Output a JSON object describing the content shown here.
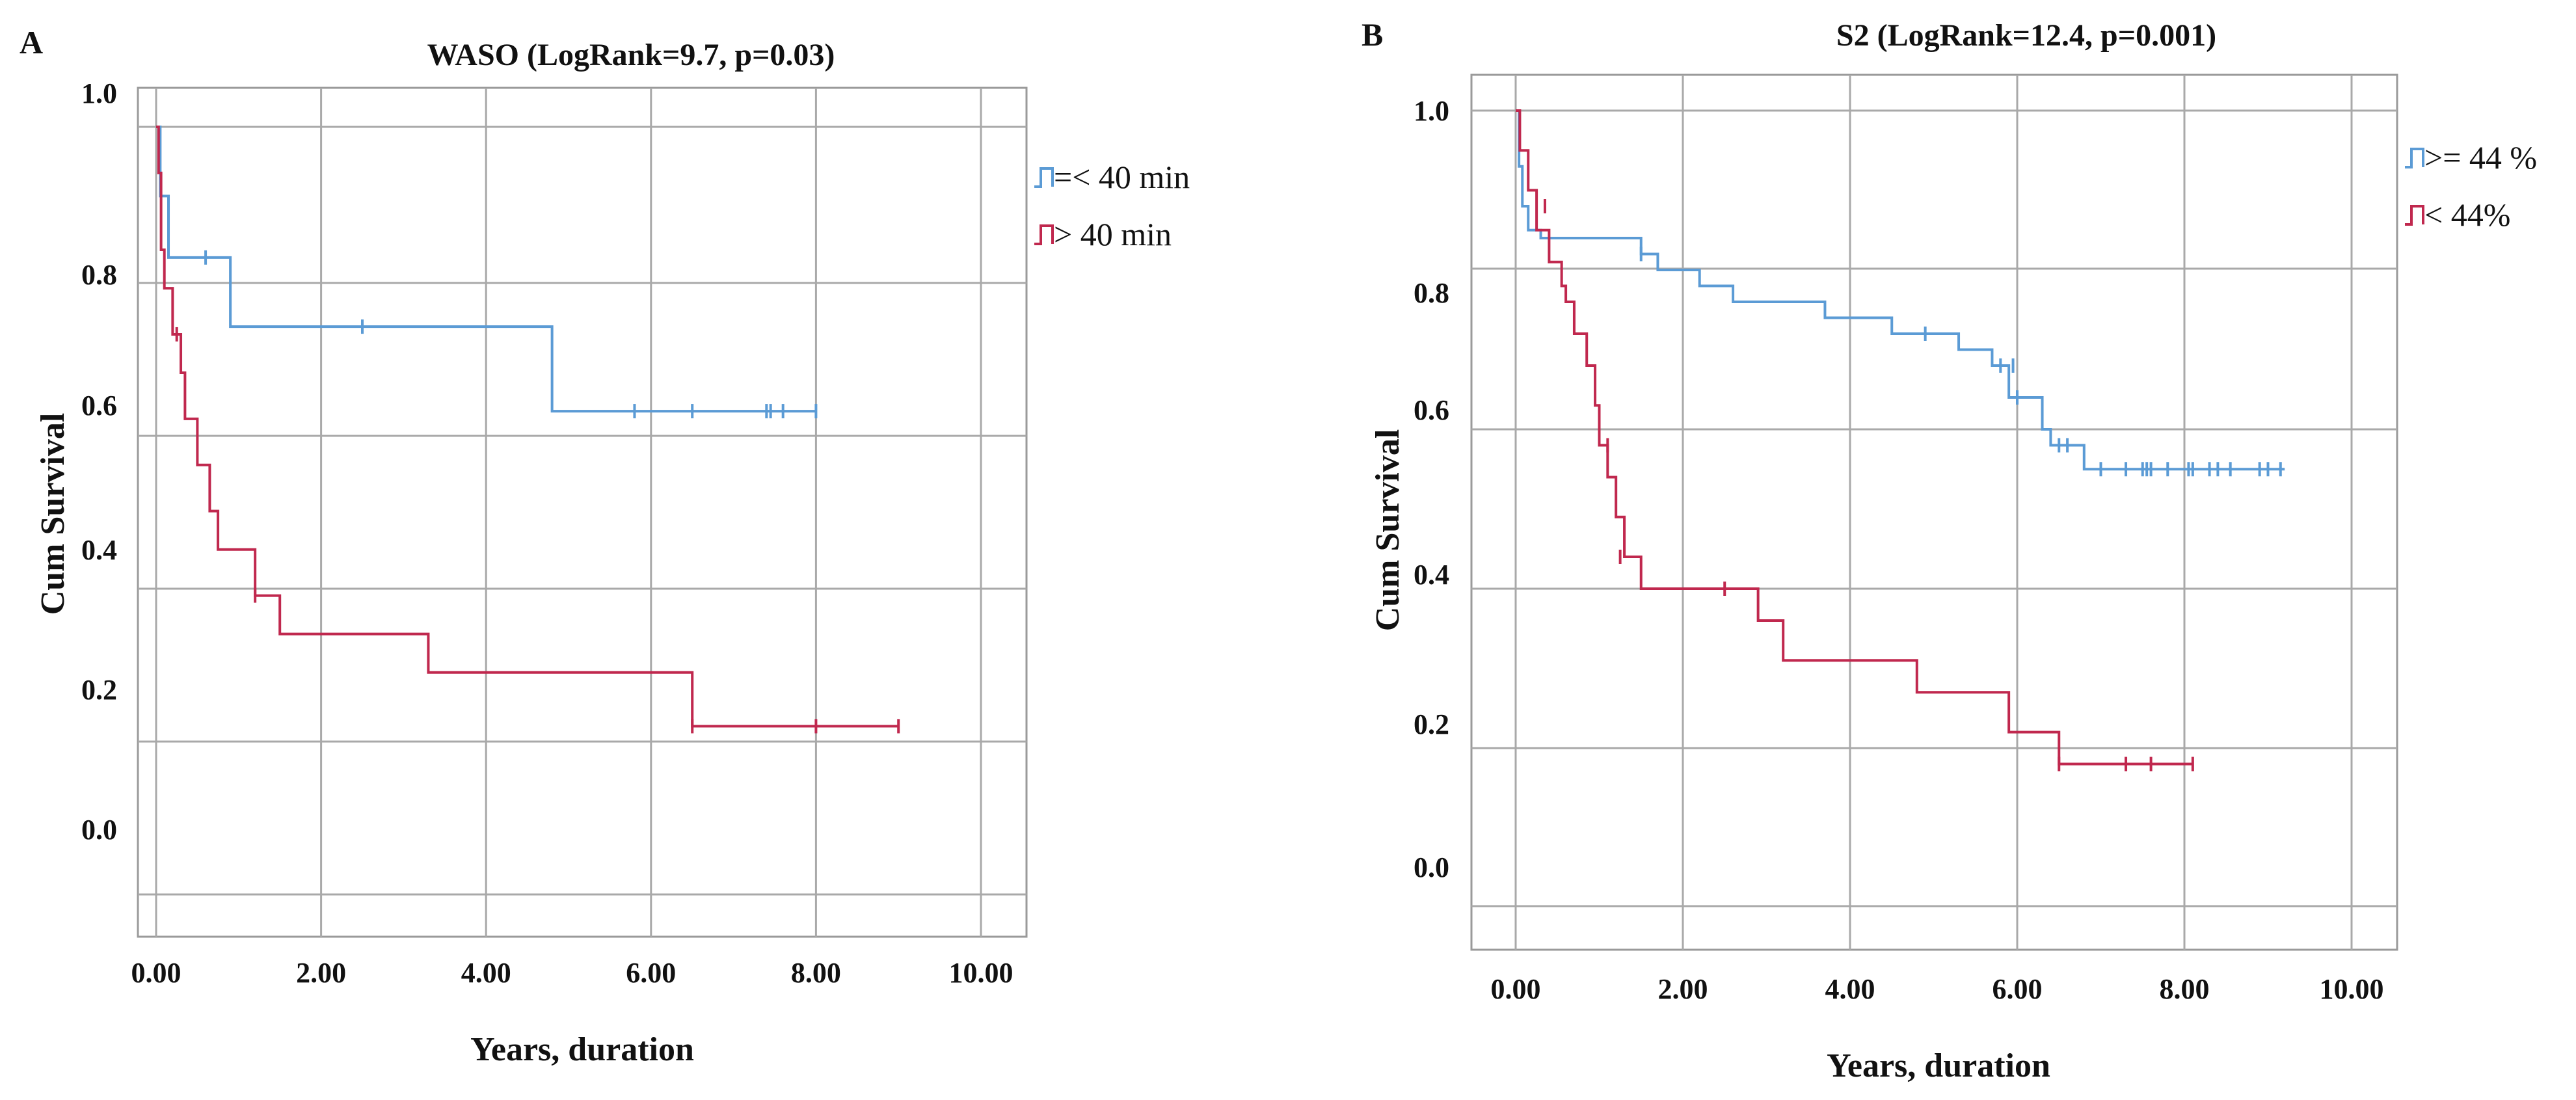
{
  "chart_data": [
    {
      "panel": "A",
      "type": "line",
      "title": "WASO (LogRank=9.7, p=0.03)",
      "xlabel": "Years, duration",
      "ylabel": "Cum Survival",
      "xlim": [
        0,
        10
      ],
      "x_ticks": [
        "0.00",
        "2.00",
        "4.00",
        "6.00",
        "8.00",
        "10.00"
      ],
      "y_ticks": [
        "0.0",
        "0.2",
        "0.4",
        "0.6",
        "0.8",
        "1.0"
      ],
      "grid": true,
      "legend_position": "top-right",
      "series": [
        {
          "name": "=< 40 min",
          "color": "#5b9bd5",
          "steps": [
            [
              0.0,
              1.0
            ],
            [
              0.05,
              0.91
            ],
            [
              0.15,
              0.83
            ],
            [
              0.9,
              0.74
            ],
            [
              4.8,
              0.63
            ],
            [
              8.0,
              0.63
            ]
          ],
          "censored": [
            [
              0.6,
              0.83
            ],
            [
              2.5,
              0.74
            ],
            [
              5.8,
              0.63
            ],
            [
              6.5,
              0.63
            ],
            [
              7.4,
              0.63
            ],
            [
              7.45,
              0.63
            ],
            [
              7.6,
              0.63
            ],
            [
              8.0,
              0.63
            ]
          ]
        },
        {
          "name": "> 40 min",
          "color": "#c0284e",
          "steps": [
            [
              0.0,
              1.0
            ],
            [
              0.03,
              0.94
            ],
            [
              0.06,
              0.84
            ],
            [
              0.1,
              0.79
            ],
            [
              0.2,
              0.73
            ],
            [
              0.3,
              0.68
            ],
            [
              0.35,
              0.62
            ],
            [
              0.5,
              0.56
            ],
            [
              0.65,
              0.5
            ],
            [
              0.75,
              0.45
            ],
            [
              1.2,
              0.39
            ],
            [
              1.5,
              0.34
            ],
            [
              3.3,
              0.29
            ],
            [
              6.5,
              0.22
            ],
            [
              9.0,
              0.22
            ]
          ],
          "censored": [
            [
              0.25,
              0.73
            ],
            [
              1.2,
              0.39
            ],
            [
              6.5,
              0.22
            ],
            [
              8.0,
              0.22
            ],
            [
              9.0,
              0.22
            ]
          ]
        }
      ]
    },
    {
      "panel": "B",
      "type": "line",
      "title": "S2 (LogRank=12.4, p=0.001)",
      "xlabel": "Years, duration",
      "ylabel": "Cum Survival",
      "xlim": [
        0,
        10
      ],
      "x_ticks": [
        "0.00",
        "2.00",
        "4.00",
        "6.00",
        "8.00",
        "10.00"
      ],
      "y_ticks": [
        "0.0",
        "0.2",
        "0.4",
        "0.6",
        "0.8",
        "1.0"
      ],
      "grid": true,
      "legend_position": "top-right",
      "series": [
        {
          "name": ">= 44 %",
          "color": "#5b9bd5",
          "steps": [
            [
              0.0,
              1.0
            ],
            [
              0.04,
              0.93
            ],
            [
              0.08,
              0.88
            ],
            [
              0.15,
              0.85
            ],
            [
              0.3,
              0.84
            ],
            [
              1.5,
              0.82
            ],
            [
              1.7,
              0.8
            ],
            [
              2.2,
              0.78
            ],
            [
              2.6,
              0.76
            ],
            [
              3.7,
              0.74
            ],
            [
              4.5,
              0.72
            ],
            [
              5.3,
              0.7
            ],
            [
              5.7,
              0.68
            ],
            [
              5.9,
              0.64
            ],
            [
              6.3,
              0.6
            ],
            [
              6.4,
              0.58
            ],
            [
              6.8,
              0.55
            ],
            [
              9.2,
              0.55
            ]
          ],
          "censored": [
            [
              1.5,
              0.82
            ],
            [
              4.9,
              0.72
            ],
            [
              5.8,
              0.68
            ],
            [
              5.95,
              0.68
            ],
            [
              6.0,
              0.64
            ],
            [
              6.5,
              0.58
            ],
            [
              6.6,
              0.58
            ],
            [
              7.0,
              0.55
            ],
            [
              7.3,
              0.55
            ],
            [
              7.5,
              0.55
            ],
            [
              7.55,
              0.55
            ],
            [
              7.6,
              0.55
            ],
            [
              7.8,
              0.55
            ],
            [
              8.05,
              0.55
            ],
            [
              8.1,
              0.55
            ],
            [
              8.3,
              0.55
            ],
            [
              8.4,
              0.55
            ],
            [
              8.55,
              0.55
            ],
            [
              8.9,
              0.55
            ],
            [
              9.0,
              0.55
            ],
            [
              9.15,
              0.55
            ]
          ]
        },
        {
          "name": "< 44%",
          "color": "#c0284e",
          "steps": [
            [
              0.0,
              1.0
            ],
            [
              0.05,
              0.95
            ],
            [
              0.15,
              0.9
            ],
            [
              0.25,
              0.85
            ],
            [
              0.4,
              0.81
            ],
            [
              0.55,
              0.78
            ],
            [
              0.6,
              0.76
            ],
            [
              0.7,
              0.72
            ],
            [
              0.85,
              0.68
            ],
            [
              0.95,
              0.63
            ],
            [
              1.0,
              0.58
            ],
            [
              1.1,
              0.54
            ],
            [
              1.2,
              0.49
            ],
            [
              1.3,
              0.44
            ],
            [
              1.5,
              0.4
            ],
            [
              2.9,
              0.36
            ],
            [
              3.2,
              0.31
            ],
            [
              4.8,
              0.27
            ],
            [
              5.9,
              0.22
            ],
            [
              6.5,
              0.18
            ],
            [
              8.1,
              0.18
            ]
          ],
          "censored": [
            [
              0.35,
              0.88
            ],
            [
              1.1,
              0.58
            ],
            [
              1.25,
              0.44
            ],
            [
              2.5,
              0.4
            ],
            [
              6.5,
              0.18
            ],
            [
              7.3,
              0.18
            ],
            [
              7.6,
              0.18
            ],
            [
              8.1,
              0.18
            ]
          ]
        }
      ]
    }
  ]
}
